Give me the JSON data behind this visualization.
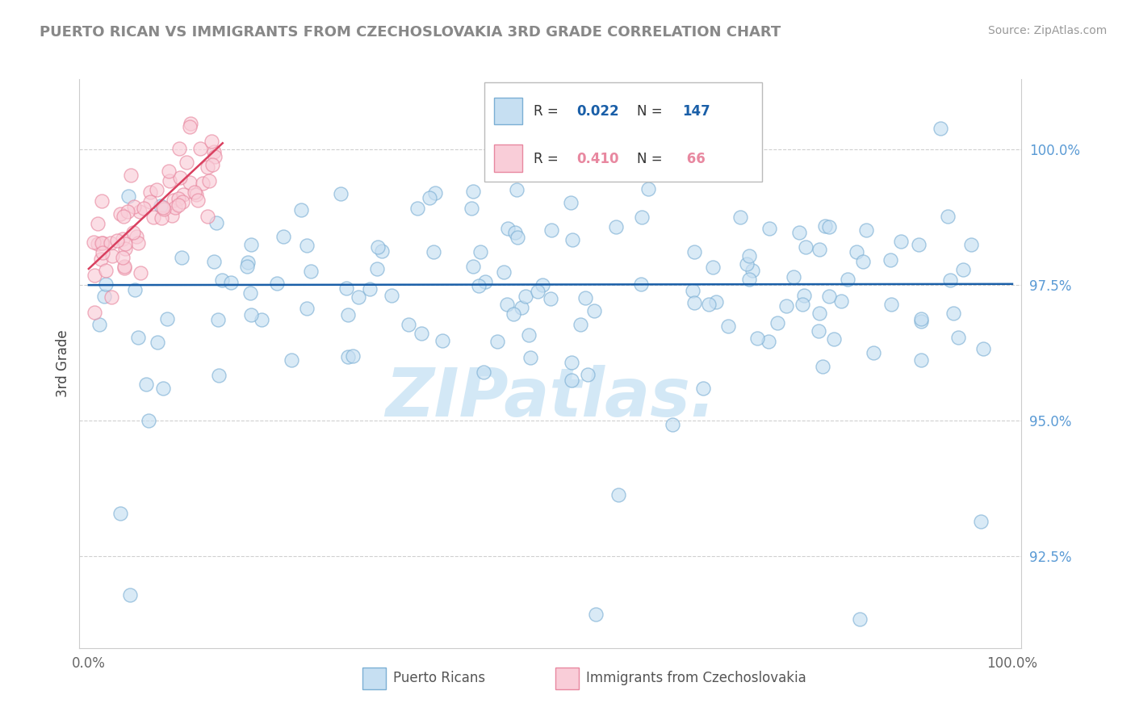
{
  "title": "PUERTO RICAN VS IMMIGRANTS FROM CZECHOSLOVAKIA 3RD GRADE CORRELATION CHART",
  "source_text": "Source: ZipAtlas.com",
  "ylabel": "3rd Grade",
  "y_ticks": [
    92.5,
    95.0,
    97.5,
    100.0
  ],
  "y_tick_labels": [
    "92.5%",
    "95.0%",
    "97.5%",
    "100.0%"
  ],
  "x_range": [
    -0.01,
    1.01
  ],
  "y_range": [
    90.8,
    101.3
  ],
  "blue_fill": "#c6dff2",
  "blue_edge": "#7bafd4",
  "blue_line": "#1a5fa8",
  "pink_fill": "#f9cdd8",
  "pink_edge": "#e888a0",
  "pink_line": "#d94060",
  "legend_r1": "0.022",
  "legend_n1": "147",
  "legend_r2": "0.410",
  "legend_n2": "66",
  "watermark": "ZIPatlas.",
  "bottom_label1": "Puerto Ricans",
  "bottom_label2": "Immigrants from Czechoslovakia",
  "title_color": "#888888",
  "tick_color": "#5b9bd5",
  "grid_color": "#d0d0d0"
}
